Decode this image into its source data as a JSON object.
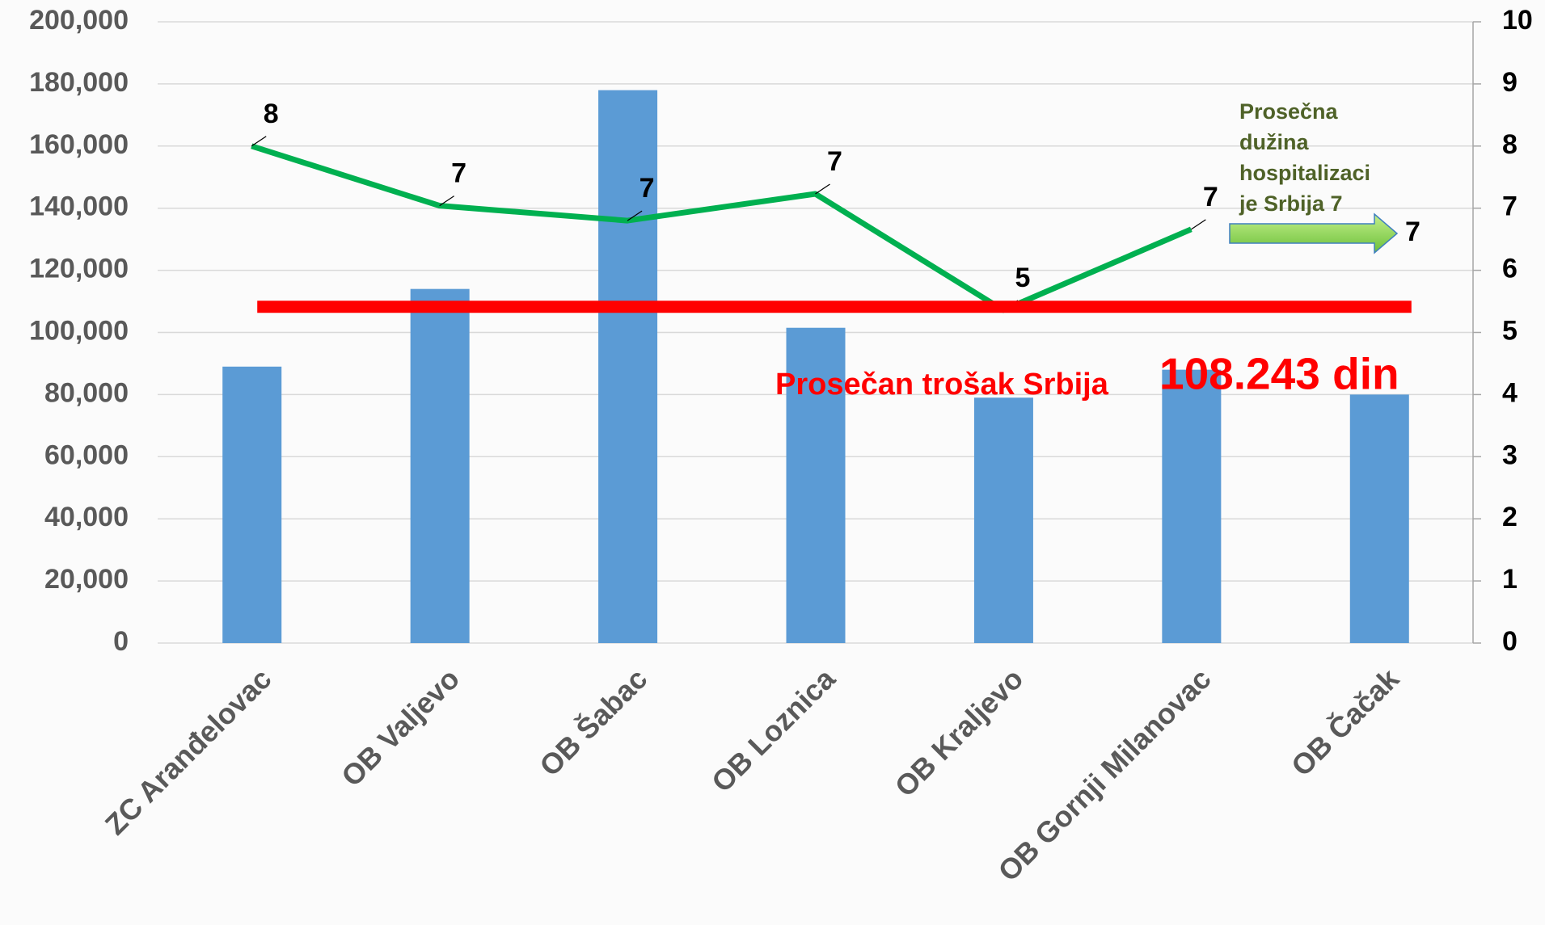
{
  "chart_data": {
    "type": "bar",
    "categories": [
      "ZC Aranđelovac",
      "OB Valjevo",
      "OB Šabac",
      "OB Loznica",
      "OB Kraljevo",
      "OB Gornji Milanovac",
      "OB Čačak"
    ],
    "series": [
      {
        "type": "bar",
        "color": "#5b9bd5",
        "values": [
          89000,
          114000,
          178000,
          101500,
          79000,
          88000,
          80000
        ]
      },
      {
        "type": "line",
        "axis": "y2",
        "color": "#00b050",
        "values": [
          8.0,
          7.04,
          6.8,
          7.23,
          5.36,
          6.66,
          null
        ],
        "value_labels": [
          "8",
          "7",
          "7",
          "7",
          "5",
          "7",
          null
        ]
      }
    ],
    "ylim": [
      0,
      200000
    ],
    "yticks": [
      0,
      {
        "value": 20000,
        "label": "20,000"
      },
      {
        "value": 40000,
        "label": "40,000"
      },
      {
        "value": 60000,
        "label": "60,000"
      },
      {
        "value": 80000,
        "label": "80,000"
      },
      {
        "value": 100000,
        "label": "100,000"
      },
      {
        "value": 120000,
        "label": "120,000"
      },
      {
        "value": 140000,
        "label": "140,000"
      },
      {
        "value": 160000,
        "label": "160,000"
      },
      {
        "value": 180000,
        "label": "180,000"
      },
      {
        "value": 200000,
        "label": "200,000"
      }
    ],
    "y2lim": [
      0,
      10
    ],
    "y2ticks": [
      0,
      1,
      2,
      3,
      4,
      5,
      6,
      7,
      8,
      9,
      10
    ],
    "grid": true,
    "reference_line": {
      "value": 108243,
      "value_label": "108.243 din",
      "text": "Prosečan trošak Srbija",
      "color": "#ff0000"
    },
    "arrow_annotation": {
      "lines": [
        "Prosečna",
        "dužina",
        "hospitalizaci",
        "je Srbija 7"
      ],
      "value": 7,
      "color": "#4f6228"
    }
  }
}
